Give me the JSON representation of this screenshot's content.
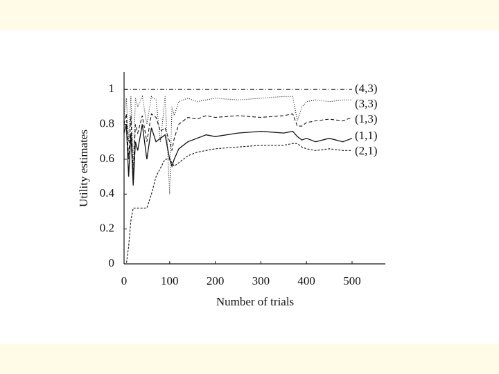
{
  "chart_data": {
    "type": "line",
    "x_label": "Number of trials",
    "y_label": "Utility estimates",
    "x": [
      0,
      5,
      10,
      15,
      20,
      25,
      30,
      40,
      50,
      60,
      70,
      80,
      90,
      100,
      105,
      110,
      120,
      140,
      160,
      180,
      200,
      250,
      300,
      350,
      370,
      380,
      390,
      400,
      420,
      450,
      480,
      500
    ],
    "series": [
      {
        "name": "(4,3)",
        "color": "#111111",
        "style": "dash-dot",
        "values": [
          1,
          1,
          1,
          1,
          1,
          1,
          1,
          1,
          1,
          1,
          1,
          1,
          1,
          1,
          1,
          1,
          1,
          1,
          1,
          1,
          1,
          1,
          1,
          1,
          1,
          1,
          1,
          1,
          1,
          1,
          1,
          1
        ]
      },
      {
        "name": "(3,3)",
        "color": "#111111",
        "style": "dotted",
        "values": [
          0.85,
          0.95,
          0.7,
          0.96,
          0.55,
          0.95,
          0.9,
          0.96,
          0.8,
          0.96,
          0.94,
          0.7,
          0.96,
          0.4,
          0.9,
          0.85,
          0.93,
          0.95,
          0.93,
          0.94,
          0.95,
          0.94,
          0.95,
          0.96,
          0.96,
          0.82,
          0.9,
          0.93,
          0.94,
          0.93,
          0.94,
          0.94
        ]
      },
      {
        "name": "(1,3)",
        "color": "#111111",
        "style": "dashed",
        "values": [
          0.8,
          0.86,
          0.6,
          0.85,
          0.5,
          0.8,
          0.75,
          0.85,
          0.7,
          0.86,
          0.84,
          0.76,
          0.78,
          0.7,
          0.65,
          0.72,
          0.8,
          0.84,
          0.83,
          0.85,
          0.84,
          0.85,
          0.84,
          0.85,
          0.86,
          0.79,
          0.79,
          0.81,
          0.82,
          0.83,
          0.82,
          0.84
        ]
      },
      {
        "name": "(1,1)",
        "color": "#111111",
        "style": "solid",
        "values": [
          0.75,
          0.8,
          0.5,
          0.75,
          0.45,
          0.7,
          0.65,
          0.8,
          0.6,
          0.78,
          0.7,
          0.72,
          0.74,
          0.6,
          0.56,
          0.6,
          0.66,
          0.7,
          0.72,
          0.74,
          0.73,
          0.75,
          0.76,
          0.75,
          0.76,
          0.73,
          0.71,
          0.72,
          0.7,
          0.72,
          0.7,
          0.72
        ]
      },
      {
        "name": "(2,1)",
        "color": "#111111",
        "style": "short-dash",
        "values": [
          0,
          0,
          0.1,
          0.25,
          0.32,
          0.32,
          0.32,
          0.32,
          0.32,
          0.4,
          0.5,
          0.55,
          0.6,
          0.6,
          0.58,
          0.56,
          0.58,
          0.62,
          0.64,
          0.65,
          0.66,
          0.67,
          0.68,
          0.68,
          0.69,
          0.69,
          0.67,
          0.66,
          0.65,
          0.66,
          0.65,
          0.65
        ]
      }
    ],
    "xlim": [
      0,
      573
    ],
    "ylim": [
      0,
      1.1
    ],
    "xticks": [
      0,
      100,
      200,
      300,
      400,
      500
    ],
    "yticks": [
      0,
      0.2,
      0.4,
      0.6,
      0.8,
      1
    ]
  }
}
